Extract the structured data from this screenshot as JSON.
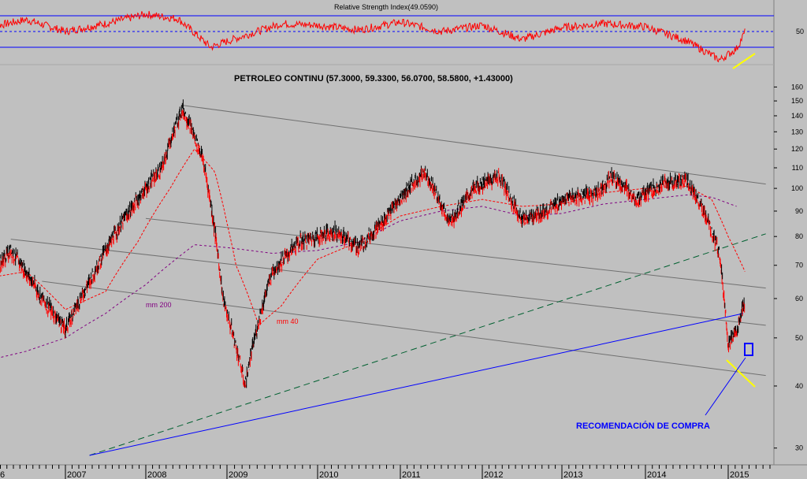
{
  "rsi_panel": {
    "title": "Relative Strength Index(49.0590)",
    "tick_label": "50",
    "line_color": "#ff0000",
    "band_color": "#0000ff"
  },
  "price_panel": {
    "title": "PETROLEO CONTINU (57.3000, 59.3300, 56.0700, 58.5800, +1.43000)",
    "annotation_buy": "RECOMENDACIÓN DE COMPRA",
    "label_mm200": "mm 200",
    "label_mm40": "mm 40"
  },
  "chart_data": [
    {
      "type": "line",
      "title": "Relative Strength Index(49.0590)",
      "ylim": [
        0,
        100
      ],
      "y_ticks": [
        50
      ],
      "bands": [
        70,
        50,
        30
      ],
      "x": [
        2006.0,
        2006.5,
        2007.0,
        2007.5,
        2008.0,
        2008.4,
        2008.8,
        2009.2,
        2009.6,
        2010.0,
        2010.5,
        2011.0,
        2011.5,
        2012.0,
        2012.5,
        2013.0,
        2013.5,
        2014.0,
        2014.5,
        2014.9,
        2015.1,
        2015.2
      ],
      "values": [
        55,
        65,
        50,
        60,
        72,
        66,
        30,
        45,
        60,
        58,
        52,
        62,
        50,
        58,
        40,
        55,
        60,
        56,
        38,
        14,
        28,
        49.059
      ],
      "color": "#ff0000"
    },
    {
      "type": "line",
      "title": "PETROLEO CONTINU (57.3000, 59.3300, 56.0700, 58.5800, +1.43000)",
      "log_scale": true,
      "ylim": [
        29,
        165
      ],
      "y_ticks": [
        30,
        40,
        50,
        60,
        70,
        80,
        90,
        100,
        110,
        120,
        130,
        140,
        150,
        160
      ],
      "x_ticks": [
        "2007",
        "2008",
        "2009",
        "2010",
        "2011",
        "2012",
        "2013",
        "2014",
        "2015"
      ],
      "x_start_label": "6",
      "last": {
        "open": 57.3,
        "high": 59.33,
        "low": 56.07,
        "close": 58.58,
        "change": 1.43
      },
      "series": [
        {
          "name": "PETROLEO CONTINU",
          "color": "#000000",
          "x": [
            2006.0,
            2006.3,
            2006.7,
            2007.0,
            2007.3,
            2007.6,
            2007.9,
            2008.2,
            2008.45,
            2008.7,
            2008.95,
            2009.2,
            2009.5,
            2009.8,
            2010.2,
            2010.5,
            2010.8,
            2011.1,
            2011.3,
            2011.6,
            2011.9,
            2012.2,
            2012.5,
            2012.8,
            2013.1,
            2013.4,
            2013.6,
            2013.9,
            2014.2,
            2014.5,
            2014.7,
            2014.9,
            2015.0,
            2015.1,
            2015.2
          ],
          "values": [
            65,
            75,
            60,
            52,
            65,
            80,
            95,
            110,
            145,
            115,
            60,
            40,
            68,
            78,
            82,
            76,
            86,
            100,
            108,
            85,
            100,
            106,
            86,
            90,
            96,
            97,
            106,
            95,
            102,
            104,
            90,
            73,
            48,
            52,
            58.58
          ]
        },
        {
          "name": "mm 40",
          "color": "#ff0000",
          "x": [
            2006.0,
            2006.5,
            2007.0,
            2007.5,
            2007.9,
            2008.3,
            2008.6,
            2008.85,
            2009.1,
            2009.35,
            2009.6,
            2010.0,
            2010.5,
            2011.0,
            2011.5,
            2012.0,
            2012.5,
            2013.0,
            2013.5,
            2014.0,
            2014.5,
            2014.8,
            2015.0,
            2015.2
          ],
          "values": [
            66,
            68,
            57,
            62,
            78,
            100,
            120,
            108,
            70,
            53,
            58,
            72,
            78,
            88,
            92,
            95,
            92,
            93,
            98,
            100,
            101,
            95,
            80,
            68
          ]
        },
        {
          "name": "mm 200",
          "color": "#800080",
          "x": [
            2006.0,
            2006.5,
            2007.0,
            2007.5,
            2008.0,
            2008.6,
            2009.0,
            2009.5,
            2010.0,
            2010.5,
            2011.0,
            2011.5,
            2012.0,
            2012.5,
            2013.0,
            2013.5,
            2014.0,
            2014.5,
            2014.8,
            2015.1
          ],
          "values": [
            45,
            47,
            50,
            56,
            64,
            77,
            76,
            74,
            75,
            78,
            86,
            90,
            92,
            88,
            89,
            93,
            95,
            97,
            96,
            92
          ]
        }
      ],
      "annotations": [
        "RECOMENDACIÓN DE COMPRA",
        "mm 200",
        "mm 40"
      ]
    }
  ]
}
